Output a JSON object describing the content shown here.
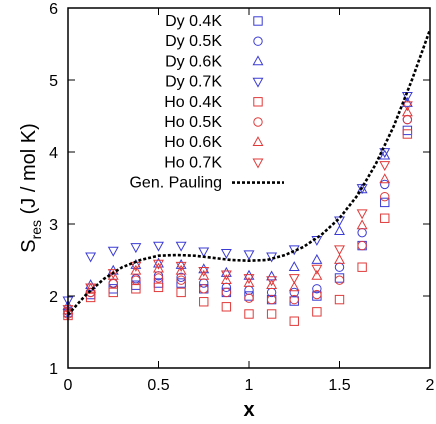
{
  "chart_data": {
    "type": "scatter",
    "title": "",
    "xlabel": "x",
    "ylabel": "S",
    "ylabel_sub": "res",
    "ylabel_unit": " (J / mol K)",
    "xlim": [
      0,
      2
    ],
    "ylim": [
      1,
      6
    ],
    "x_ticks": [
      "0",
      "0.5",
      "1",
      "1.5",
      "2"
    ],
    "y_ticks": [
      "1",
      "2",
      "3",
      "4",
      "5",
      "6"
    ],
    "legend_position": "top-left",
    "grid": false,
    "series": [
      {
        "name": "Dy 0.4K",
        "marker": "square",
        "color": "#3b3bd4",
        "x": [
          0,
          0.125,
          0.25,
          0.375,
          0.5,
          0.625,
          0.75,
          0.875,
          1,
          1.125,
          1.25,
          1.375,
          1.5,
          1.625,
          1.75,
          1.875
        ],
        "y": [
          1.77,
          2.02,
          2.1,
          2.15,
          2.18,
          2.18,
          2.1,
          2.05,
          2.0,
          1.95,
          1.93,
          2.0,
          2.25,
          2.7,
          3.3,
          4.3
        ]
      },
      {
        "name": "Dy 0.5K",
        "marker": "circle",
        "color": "#3b3bd4",
        "x": [
          0,
          0.125,
          0.25,
          0.375,
          0.5,
          0.625,
          0.75,
          0.875,
          1,
          1.125,
          1.25,
          1.375,
          1.5,
          1.625,
          1.75,
          1.875
        ],
        "y": [
          1.79,
          2.05,
          2.18,
          2.24,
          2.28,
          2.26,
          2.18,
          2.12,
          2.08,
          2.05,
          2.05,
          2.1,
          2.4,
          2.88,
          3.55,
          4.45
        ]
      },
      {
        "name": "Dy 0.6K",
        "marker": "triangle-up",
        "color": "#3b3bd4",
        "x": [
          0,
          0.125,
          0.25,
          0.375,
          0.5,
          0.625,
          0.75,
          0.875,
          1,
          1.125,
          1.25,
          1.375,
          1.5,
          1.625,
          1.75,
          1.875
        ],
        "y": [
          1.86,
          2.15,
          2.35,
          2.43,
          2.45,
          2.43,
          2.37,
          2.32,
          2.28,
          2.27,
          2.4,
          2.5,
          2.9,
          3.48,
          3.95,
          4.68
        ]
      },
      {
        "name": "Dy 0.7K",
        "marker": "triangle-down",
        "color": "#3b3bd4",
        "x": [
          0,
          0.125,
          0.25,
          0.375,
          0.5,
          0.625,
          0.75,
          0.875,
          1,
          1.125,
          1.25,
          1.375,
          1.5,
          1.625,
          1.75,
          1.875
        ],
        "y": [
          1.94,
          2.55,
          2.63,
          2.68,
          2.7,
          2.7,
          2.62,
          2.6,
          2.58,
          2.55,
          2.65,
          2.78,
          3.05,
          3.5,
          4.0,
          4.78
        ]
      },
      {
        "name": "Ho 0.4K",
        "marker": "square",
        "color": "#e03a3a",
        "x": [
          0,
          0.125,
          0.25,
          0.375,
          0.5,
          0.625,
          0.75,
          0.875,
          1,
          1.125,
          1.25,
          1.375,
          1.5,
          1.625,
          1.75,
          1.875
        ],
        "y": [
          1.73,
          1.98,
          2.05,
          2.1,
          2.12,
          2.05,
          1.92,
          1.85,
          1.75,
          1.75,
          1.65,
          1.78,
          1.95,
          2.4,
          3.08,
          4.25
        ]
      },
      {
        "name": "Ho 0.5K",
        "marker": "circle",
        "color": "#e03a3a",
        "x": [
          0,
          0.125,
          0.25,
          0.375,
          0.5,
          0.625,
          0.75,
          0.875,
          1,
          1.125,
          1.25,
          1.375,
          1.5,
          1.625,
          1.75,
          1.875
        ],
        "y": [
          1.75,
          2.05,
          2.17,
          2.22,
          2.25,
          2.22,
          2.1,
          2.05,
          1.97,
          1.95,
          1.95,
          2.02,
          2.22,
          2.7,
          3.38,
          4.45
        ]
      },
      {
        "name": "Ho 0.6K",
        "marker": "triangle-up",
        "color": "#e03a3a",
        "x": [
          0,
          0.125,
          0.25,
          0.375,
          0.5,
          0.625,
          0.75,
          0.875,
          1,
          1.125,
          1.25,
          1.375,
          1.5,
          1.625,
          1.75,
          1.875
        ],
        "y": [
          1.8,
          2.1,
          2.28,
          2.35,
          2.38,
          2.35,
          2.28,
          2.22,
          2.18,
          2.15,
          2.12,
          2.28,
          2.5,
          2.98,
          3.62,
          4.55
        ]
      },
      {
        "name": "Ho 0.7K",
        "marker": "triangle-down",
        "color": "#e03a3a",
        "x": [
          0,
          0.125,
          0.25,
          0.375,
          0.5,
          0.625,
          0.75,
          0.875,
          1,
          1.125,
          1.25,
          1.375,
          1.5,
          1.625,
          1.75,
          1.875
        ],
        "y": [
          1.82,
          2.12,
          2.32,
          2.42,
          2.45,
          2.42,
          2.35,
          2.3,
          2.25,
          2.22,
          2.25,
          2.38,
          2.65,
          3.15,
          3.82,
          4.65
        ]
      },
      {
        "name": "Gen. Pauling",
        "marker": "dashed-line",
        "color": "#000000",
        "x": [
          0,
          0.1,
          0.2,
          0.3,
          0.4,
          0.5,
          0.6,
          0.7,
          0.8,
          0.9,
          1.0,
          1.1,
          1.2,
          1.3,
          1.4,
          1.5,
          1.6,
          1.7,
          1.8,
          1.9,
          2.0
        ],
        "y": [
          1.74,
          2.02,
          2.24,
          2.4,
          2.5,
          2.56,
          2.57,
          2.56,
          2.53,
          2.5,
          2.49,
          2.5,
          2.57,
          2.68,
          2.85,
          3.08,
          3.4,
          3.83,
          4.36,
          5.0,
          5.7
        ]
      }
    ]
  }
}
